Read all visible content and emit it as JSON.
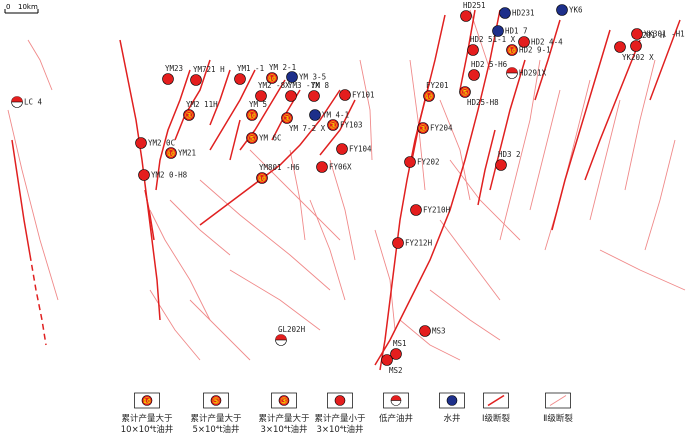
{
  "scale": {
    "zero": "0",
    "length_label": "10km"
  },
  "colors": {
    "fault_major": "#e02020",
    "fault_minor": "#f08a8a",
    "oil_well": "#e41e1e",
    "water_well": "#1d2f8a",
    "rank_text": "#f5d000"
  },
  "wells": [
    {
      "name": "LC 4",
      "type": "low"
    },
    {
      "name": "YM23",
      "type": "lt3"
    },
    {
      "name": "YM721 H",
      "type": "lt3"
    },
    {
      "name": "YM1 -1",
      "type": "lt3"
    },
    {
      "name": "YM 2-1",
      "type": "gt10",
      "rank": "10"
    },
    {
      "name": "YM 3-5",
      "type": "water"
    },
    {
      "name": "YM2 -8X",
      "type": "lt3"
    },
    {
      "name": "YM3 -7X",
      "type": "lt3"
    },
    {
      "name": "YM 8",
      "type": "lt3"
    },
    {
      "name": "FY101",
      "type": "lt3"
    },
    {
      "name": "YM2 11H",
      "type": "gt3",
      "rank": "3"
    },
    {
      "name": "YM 5",
      "type": "gt10",
      "rank": "10"
    },
    {
      "name": "YM 4-1",
      "type": "water"
    },
    {
      "name": "YM 7-2 X",
      "type": "gt3",
      "rank": "3"
    },
    {
      "name": "FY103",
      "type": "gt3",
      "rank": "3"
    },
    {
      "name": "YM 6C",
      "type": "gt5",
      "rank": "5"
    },
    {
      "name": "YM2 0C",
      "type": "lt3"
    },
    {
      "name": "YM21",
      "type": "gt10",
      "rank": "10"
    },
    {
      "name": "FY104",
      "type": "lt3"
    },
    {
      "name": "YM801 -H6",
      "type": "gt10",
      "rank": "10"
    },
    {
      "name": "FY06X",
      "type": "lt3"
    },
    {
      "name": "YM2 0-H8",
      "type": "lt3"
    },
    {
      "name": "GL202H",
      "type": "low"
    },
    {
      "name": "HD251",
      "type": "lt3"
    },
    {
      "name": "HD231",
      "type": "water"
    },
    {
      "name": "HD1 7",
      "type": "water"
    },
    {
      "name": "YK6",
      "type": "water"
    },
    {
      "name": "HD2 51-1 X",
      "type": "lt3"
    },
    {
      "name": "HD2 4-4",
      "type": "lt3"
    },
    {
      "name": "HD2 9-1",
      "type": "gt10",
      "rank": "10"
    },
    {
      "name": "HD2 5-H6",
      "type": "lt3"
    },
    {
      "name": "HD291X",
      "type": "low"
    },
    {
      "name": "HD25-H8",
      "type": "gt5",
      "rank": "5"
    },
    {
      "name": "YK201 H",
      "type": "lt3"
    },
    {
      "name": "YK301 -H1",
      "type": "lt3"
    },
    {
      "name": "YK202 X",
      "type": "lt3"
    },
    {
      "name": "FY201",
      "type": "gt10",
      "rank": "10"
    },
    {
      "name": "FY204",
      "type": "gt3",
      "rank": "3"
    },
    {
      "name": "FY202",
      "type": "lt3"
    },
    {
      "name": "HD3 2",
      "type": "lt3"
    },
    {
      "name": "FY210H",
      "type": "lt3"
    },
    {
      "name": "FY212H",
      "type": "lt3"
    },
    {
      "name": "MS3",
      "type": "lt3"
    },
    {
      "name": "MS1",
      "type": "lt3"
    },
    {
      "name": "MS2",
      "type": "lt3"
    }
  ],
  "legend": [
    {
      "key": "gt10",
      "rank": "10",
      "line1": "累计产量大于",
      "line2": "10×10⁴t油井"
    },
    {
      "key": "gt5",
      "rank": "5",
      "line1": "累计产量大于",
      "line2": "5×10⁴t油井"
    },
    {
      "key": "gt3",
      "rank": "3",
      "line1": "累计产量大于",
      "line2": "3×10⁴t油井"
    },
    {
      "key": "lt3",
      "rank": "",
      "line1": "累计产量小于",
      "line2": "3×10⁴t油井"
    },
    {
      "key": "low",
      "rank": "",
      "line1": "低产油井",
      "line2": ""
    },
    {
      "key": "water",
      "rank": "",
      "line1": "水井",
      "line2": ""
    },
    {
      "key": "fault1",
      "rank": "",
      "line1": "Ⅰ级断裂",
      "line2": ""
    },
    {
      "key": "fault2",
      "rank": "",
      "line1": "Ⅱ级断裂",
      "line2": ""
    }
  ]
}
